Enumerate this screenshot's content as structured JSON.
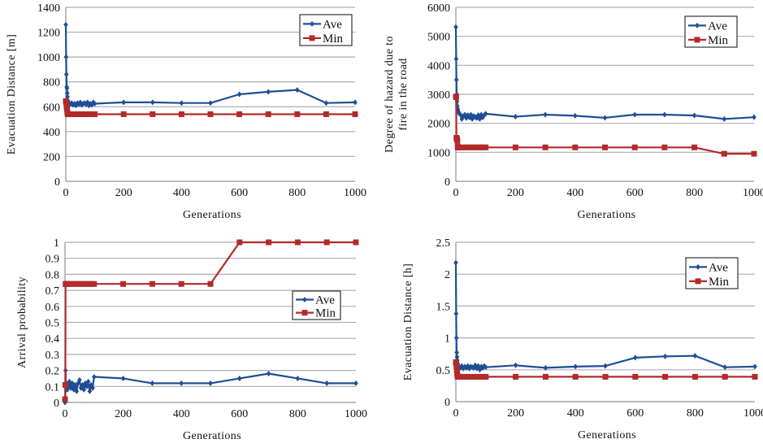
{
  "colors": {
    "ave": "#1f4e96",
    "min": "#b22a2a"
  },
  "legend_labels": {
    "ave": "Ave",
    "min": "Min"
  },
  "chart_data": [
    {
      "id": "chart1",
      "type": "line",
      "title": "",
      "xlabel": "Generations",
      "ylabel": "Evacuation Distance [m]",
      "xlim": [
        0,
        1000
      ],
      "ylim": [
        0,
        1400
      ],
      "xticks": [
        0,
        200,
        400,
        600,
        800,
        1000
      ],
      "yticks": [
        0,
        200,
        400,
        600,
        800,
        1000,
        1200,
        1400
      ],
      "ytick_labels": [
        "0",
        "200",
        "400",
        "600",
        "800",
        "1000",
        "1200",
        "1400"
      ],
      "grid": true,
      "legend": "top-right",
      "series": [
        {
          "name": "Ave",
          "x": [
            0,
            1,
            2,
            3,
            4,
            5,
            6,
            7,
            8,
            9,
            10,
            15,
            20,
            25,
            30,
            35,
            40,
            45,
            50,
            55,
            60,
            65,
            70,
            75,
            80,
            85,
            90,
            95,
            100,
            200,
            300,
            400,
            500,
            600,
            700,
            800,
            900,
            1000
          ],
          "y": [
            1260,
            1000,
            860,
            760,
            750,
            710,
            680,
            650,
            640,
            630,
            625,
            620,
            630,
            615,
            625,
            610,
            630,
            620,
            635,
            615,
            625,
            630,
            620,
            635,
            610,
            625,
            615,
            635,
            625,
            635,
            635,
            630,
            630,
            700,
            720,
            735,
            630,
            635
          ]
        },
        {
          "name": "Min",
          "x": [
            0,
            1,
            2,
            3,
            4,
            5,
            6,
            7,
            8,
            9,
            10,
            20,
            30,
            40,
            50,
            60,
            70,
            80,
            90,
            100,
            200,
            300,
            400,
            500,
            600,
            700,
            800,
            900,
            1000
          ],
          "y": [
            645,
            640,
            620,
            600,
            580,
            560,
            545,
            540,
            540,
            540,
            540,
            540,
            540,
            540,
            540,
            540,
            540,
            540,
            540,
            540,
            540,
            540,
            540,
            540,
            540,
            540,
            540,
            540,
            540
          ]
        }
      ]
    },
    {
      "id": "chart2",
      "type": "line",
      "title": "",
      "xlabel": "Generations",
      "ylabel": "Degree of hazard due to fire in the road",
      "ylabel_lines": [
        "Degree of hazard due to",
        "fire in the road"
      ],
      "xlim": [
        0,
        1000
      ],
      "ylim": [
        0,
        6000
      ],
      "xticks": [
        0,
        200,
        400,
        600,
        800,
        1000
      ],
      "yticks": [
        0,
        1000,
        2000,
        3000,
        4000,
        5000,
        6000
      ],
      "ytick_labels": [
        "0",
        "1000",
        "2000",
        "3000",
        "4000",
        "5000",
        "6000"
      ],
      "grid": true,
      "legend": "top-right",
      "series": [
        {
          "name": "Ave",
          "x": [
            0,
            1,
            2,
            3,
            4,
            5,
            6,
            7,
            8,
            9,
            10,
            15,
            20,
            25,
            30,
            35,
            40,
            45,
            50,
            55,
            60,
            65,
            70,
            75,
            80,
            85,
            90,
            95,
            100,
            200,
            300,
            400,
            500,
            600,
            700,
            800,
            900,
            1000
          ],
          "y": [
            5320,
            4220,
            3500,
            3000,
            2750,
            2600,
            2500,
            2450,
            2400,
            2380,
            2350,
            2300,
            2150,
            2250,
            2300,
            2180,
            2280,
            2200,
            2300,
            2150,
            2250,
            2220,
            2180,
            2280,
            2150,
            2300,
            2200,
            2280,
            2330,
            2230,
            2300,
            2260,
            2190,
            2300,
            2300,
            2270,
            2150,
            2210
          ]
        },
        {
          "name": "Min",
          "x": [
            0,
            1,
            2,
            3,
            4,
            5,
            6,
            7,
            8,
            9,
            10,
            20,
            30,
            40,
            50,
            60,
            70,
            80,
            90,
            100,
            200,
            300,
            400,
            500,
            600,
            700,
            800,
            900,
            1000
          ],
          "y": [
            2920,
            2900,
            1500,
            1480,
            1450,
            1400,
            1200,
            1170,
            1170,
            1170,
            1170,
            1170,
            1170,
            1170,
            1170,
            1170,
            1170,
            1170,
            1170,
            1170,
            1170,
            1170,
            1170,
            1170,
            1170,
            1170,
            1170,
            950,
            950
          ]
        }
      ]
    },
    {
      "id": "chart3",
      "type": "line",
      "title": "",
      "xlabel": "Generations",
      "ylabel": "Arrival probability",
      "xlim": [
        0,
        1000
      ],
      "ylim": [
        0,
        1
      ],
      "xticks": [
        0,
        200,
        400,
        600,
        800,
        1000
      ],
      "yticks": [
        0,
        0.1,
        0.2,
        0.3,
        0.4,
        0.5,
        0.6,
        0.7,
        0.8,
        0.9,
        1
      ],
      "ytick_labels": [
        "0",
        "0.1",
        "0.2",
        "0.3",
        "0.4",
        "0.5",
        "0.6",
        "0.7",
        "0.8",
        "0.9",
        "1"
      ],
      "grid": true,
      "legend": "center-right",
      "series": [
        {
          "name": "Ave",
          "x": [
            0,
            1,
            2,
            3,
            4,
            5,
            6,
            7,
            8,
            9,
            10,
            15,
            20,
            25,
            30,
            35,
            40,
            45,
            50,
            55,
            60,
            65,
            70,
            75,
            80,
            85,
            90,
            95,
            100,
            200,
            300,
            400,
            500,
            600,
            700,
            800,
            900,
            1000
          ],
          "y": [
            0.0,
            0.02,
            0.2,
            0.1,
            0.08,
            0.12,
            0.09,
            0.1,
            0.08,
            0.11,
            0.1,
            0.13,
            0.09,
            0.12,
            0.08,
            0.11,
            0.07,
            0.12,
            0.14,
            0.09,
            0.11,
            0.08,
            0.12,
            0.1,
            0.13,
            0.07,
            0.11,
            0.09,
            0.16,
            0.15,
            0.12,
            0.12,
            0.12,
            0.15,
            0.18,
            0.15,
            0.12,
            0.12
          ]
        },
        {
          "name": "Min",
          "x": [
            0,
            1,
            2,
            3,
            4,
            5,
            10,
            20,
            30,
            40,
            50,
            60,
            70,
            80,
            90,
            100,
            200,
            300,
            400,
            500,
            600,
            700,
            800,
            900,
            1000
          ],
          "y": [
            0.02,
            0.11,
            0.74,
            0.74,
            0.74,
            0.74,
            0.74,
            0.74,
            0.74,
            0.74,
            0.74,
            0.74,
            0.74,
            0.74,
            0.74,
            0.74,
            0.74,
            0.74,
            0.74,
            0.74,
            1.0,
            1.0,
            1.0,
            1.0,
            1.0
          ]
        }
      ]
    },
    {
      "id": "chart4",
      "type": "line",
      "title": "",
      "xlabel": "Generations",
      "ylabel": "Evacuation Distance [h]",
      "xlim": [
        0,
        1000
      ],
      "ylim": [
        0,
        2.5
      ],
      "xticks": [
        0,
        200,
        400,
        600,
        800,
        1000
      ],
      "yticks": [
        0,
        0.5,
        1,
        1.5,
        2,
        2.5
      ],
      "ytick_labels": [
        "0",
        "0.5",
        "1",
        "1.5",
        "2",
        "2.5"
      ],
      "grid": true,
      "legend": "top-right",
      "series": [
        {
          "name": "Ave",
          "x": [
            0,
            1,
            2,
            3,
            4,
            5,
            6,
            7,
            8,
            9,
            10,
            15,
            20,
            25,
            30,
            35,
            40,
            45,
            50,
            55,
            60,
            65,
            70,
            75,
            80,
            85,
            90,
            95,
            100,
            200,
            300,
            400,
            500,
            600,
            700,
            800,
            900,
            1000
          ],
          "y": [
            2.18,
            1.38,
            1.0,
            0.77,
            0.7,
            0.65,
            0.6,
            0.58,
            0.56,
            0.55,
            0.55,
            0.53,
            0.56,
            0.52,
            0.55,
            0.53,
            0.56,
            0.52,
            0.55,
            0.54,
            0.53,
            0.57,
            0.52,
            0.56,
            0.5,
            0.55,
            0.53,
            0.56,
            0.54,
            0.57,
            0.53,
            0.55,
            0.56,
            0.69,
            0.71,
            0.72,
            0.54,
            0.55
          ]
        },
        {
          "name": "Min",
          "x": [
            0,
            1,
            2,
            3,
            4,
            5,
            6,
            7,
            8,
            9,
            10,
            20,
            30,
            40,
            50,
            60,
            70,
            80,
            90,
            100,
            200,
            300,
            400,
            500,
            600,
            700,
            800,
            900,
            1000
          ],
          "y": [
            0.62,
            0.6,
            0.55,
            0.5,
            0.45,
            0.42,
            0.39,
            0.39,
            0.39,
            0.39,
            0.39,
            0.39,
            0.39,
            0.39,
            0.39,
            0.39,
            0.39,
            0.39,
            0.39,
            0.39,
            0.39,
            0.39,
            0.39,
            0.39,
            0.39,
            0.39,
            0.39,
            0.39,
            0.39
          ]
        }
      ]
    }
  ]
}
